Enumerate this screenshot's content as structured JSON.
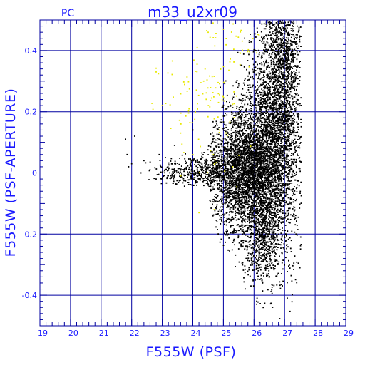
{
  "chart_data": {
    "type": "scatter",
    "title": "m33_u2xr09",
    "corner_label": "PC",
    "xlabel": "F555W (PSF)",
    "ylabel": "F555W (PSF-APERTURE)",
    "xlim": [
      19,
      29
    ],
    "ylim": [
      -0.5,
      0.5
    ],
    "x_ticks": [
      "19",
      "20",
      "21",
      "22",
      "23",
      "24",
      "25",
      "26",
      "27",
      "28",
      "29"
    ],
    "y_ticks": [
      "-0.4",
      "-0.2",
      "0",
      "0.2",
      "0.4"
    ],
    "y_tick_values": [
      -0.4,
      -0.2,
      0,
      0.2,
      0.4
    ],
    "grid": true,
    "series": [
      {
        "color": "#000000",
        "description_points": "main population",
        "seed": 7,
        "clusters": [
          {
            "cx": 25.6,
            "cy": 0.0,
            "sx": 0.55,
            "sy": 0.09,
            "n": 2600
          },
          {
            "cx": 26.4,
            "cy": 0.05,
            "sx": 0.5,
            "sy": 0.18,
            "n": 2600
          },
          {
            "cx": 26.9,
            "cy": 0.2,
            "sx": 0.35,
            "sy": 0.17,
            "n": 1400
          },
          {
            "cx": 27.0,
            "cy": 0.4,
            "sx": 0.3,
            "sy": 0.08,
            "n": 500
          },
          {
            "cx": 24.2,
            "cy": 0.0,
            "sx": 0.55,
            "sy": 0.025,
            "n": 350
          },
          {
            "cx": 26.3,
            "cy": -0.22,
            "sx": 0.3,
            "sy": 0.07,
            "n": 450
          },
          {
            "cx": 23.2,
            "cy": 0.0,
            "sx": 0.35,
            "sy": 0.025,
            "n": 60
          }
        ],
        "points": [
          {
            "x": 21.8,
            "y": 0.11
          },
          {
            "x": 21.85,
            "y": 0.06
          },
          {
            "x": 21.9,
            "y": 0.02
          },
          {
            "x": 22.0,
            "y": 0.03
          },
          {
            "x": 22.1,
            "y": 0.12
          },
          {
            "x": 22.3,
            "y": 0.0
          },
          {
            "x": 22.4,
            "y": 0.04
          },
          {
            "x": 22.6,
            "y": 0.01
          },
          {
            "x": 22.8,
            "y": -0.02
          },
          {
            "x": 22.9,
            "y": 0.06
          },
          {
            "x": 23.1,
            "y": 0.05
          },
          {
            "x": 23.4,
            "y": 0.09
          },
          {
            "x": 24.0,
            "y": 0.14
          },
          {
            "x": 24.9,
            "y": 0.28
          },
          {
            "x": 26.3,
            "y": -0.44
          },
          {
            "x": 26.1,
            "y": -0.41
          },
          {
            "x": 25.9,
            "y": -0.37
          }
        ]
      },
      {
        "color": "#e8e800",
        "description_points": "secondary points",
        "seed": 13,
        "clusters": [
          {
            "cx": 24.6,
            "cy": 0.24,
            "sx": 0.55,
            "sy": 0.12,
            "n": 90
          },
          {
            "cx": 23.5,
            "cy": 0.22,
            "sx": 0.4,
            "sy": 0.09,
            "n": 20
          },
          {
            "cx": 25.5,
            "cy": 0.42,
            "sx": 0.45,
            "sy": 0.05,
            "n": 25
          }
        ],
        "points": [
          {
            "x": 22.8,
            "y": 0.33
          },
          {
            "x": 23.0,
            "y": 0.22
          },
          {
            "x": 23.6,
            "y": 0.13
          },
          {
            "x": 24.4,
            "y": 0.34
          },
          {
            "x": 25.3,
            "y": 0.02
          },
          {
            "x": 24.7,
            "y": -0.12
          },
          {
            "x": 24.2,
            "y": -0.13
          },
          {
            "x": 24.5,
            "y": 0.46
          },
          {
            "x": 25.0,
            "y": 0.47
          }
        ]
      }
    ]
  },
  "colors": {
    "axis": "#1a1aff",
    "grid": "#0000a0",
    "background": "#ffffff"
  }
}
